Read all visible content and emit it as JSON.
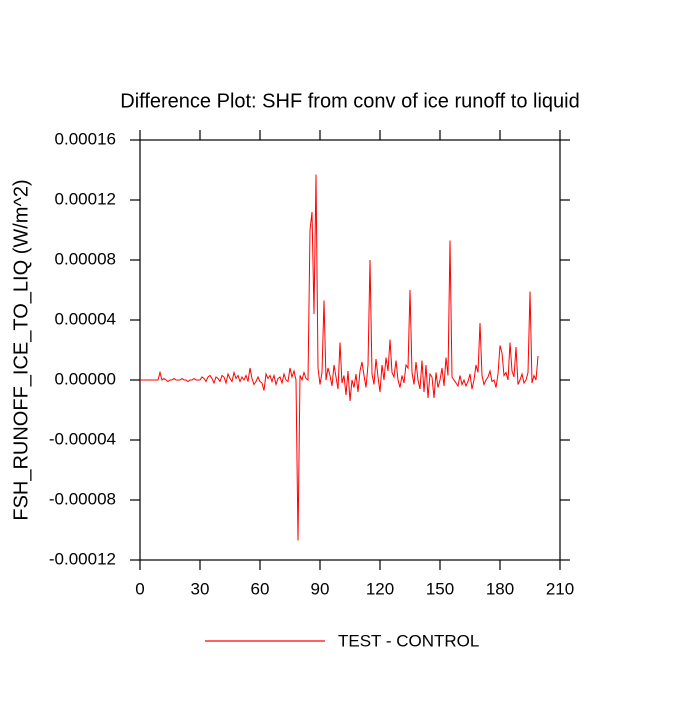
{
  "chart_data": {
    "type": "line",
    "title": "Difference Plot: SHF from conv of ice runoff to liquid",
    "y_label": "FSH_RUNOFF_ICE_TO_LIQ  (W/m^2)",
    "xlim": [
      0,
      210
    ],
    "xticks": [
      0,
      30,
      60,
      90,
      120,
      150,
      180,
      210
    ],
    "ylim": [
      -0.00012,
      0.00016
    ],
    "yticks": [
      0.00016,
      0.00012,
      8e-05,
      4e-05,
      {
        "value": 0,
        "label": "0.00000"
      },
      -4e-05,
      -8e-05,
      -0.00012
    ],
    "x": [
      0,
      1,
      2,
      3,
      4,
      5,
      6,
      7,
      8,
      9,
      10,
      11,
      12,
      13,
      14,
      15,
      16,
      17,
      18,
      19,
      20,
      21,
      22,
      23,
      24,
      25,
      26,
      27,
      28,
      29,
      30,
      31,
      32,
      33,
      34,
      35,
      36,
      37,
      38,
      39,
      40,
      41,
      42,
      43,
      44,
      45,
      46,
      47,
      48,
      49,
      50,
      51,
      52,
      53,
      54,
      55,
      56,
      57,
      58,
      59,
      60,
      61,
      62,
      63,
      64,
      65,
      66,
      67,
      68,
      69,
      70,
      71,
      72,
      73,
      74,
      75,
      76,
      77,
      78,
      79,
      80,
      81,
      82,
      83,
      84,
      85,
      86,
      87,
      88,
      89,
      90,
      91,
      92,
      93,
      94,
      95,
      96,
      97,
      98,
      99,
      100,
      101,
      102,
      103,
      104,
      105,
      106,
      107,
      108,
      109,
      110,
      111,
      112,
      113,
      114,
      115,
      116,
      117,
      118,
      119,
      120,
      121,
      122,
      123,
      124,
      125,
      126,
      127,
      128,
      129,
      130,
      131,
      132,
      133,
      134,
      135,
      136,
      137,
      138,
      139,
      140,
      141,
      142,
      143,
      144,
      145,
      146,
      147,
      148,
      149,
      150,
      151,
      152,
      153,
      154,
      155,
      156,
      157,
      158,
      159,
      160,
      161,
      162,
      163,
      164,
      165,
      166,
      167,
      168,
      169,
      170,
      171,
      172,
      173,
      174,
      175,
      176,
      177,
      178,
      179,
      180,
      181,
      182,
      183,
      184,
      185,
      186,
      187,
      188,
      189,
      190,
      191,
      192,
      193,
      194,
      195,
      196,
      197,
      198,
      199
    ],
    "series": [
      {
        "name": "TEST - CONTROL",
        "color": "#ff0000",
        "values": [
          0,
          0,
          0,
          0,
          0,
          0,
          0,
          0,
          0,
          0,
          5e-06,
          0,
          1e-06,
          0,
          -1e-06,
          0,
          0,
          1e-06,
          0,
          0,
          0,
          1e-06,
          0,
          0,
          -1e-06,
          0,
          0,
          1e-06,
          0,
          0,
          0,
          2e-06,
          1e-06,
          -1e-06,
          2e-06,
          3e-06,
          1e-06,
          -2e-06,
          2e-06,
          1e-06,
          -1e-06,
          3e-06,
          2e-06,
          -2e-06,
          4e-06,
          1e-06,
          -1e-06,
          5e-06,
          1e-06,
          3e-06,
          -1e-06,
          2e-06,
          0,
          3e-06,
          -1e-06,
          8e-06,
          1e-06,
          -3e-06,
          -1e-06,
          2e-06,
          -1e-06,
          -2e-06,
          -7e-06,
          4e-06,
          1e-06,
          3e-06,
          -1e-06,
          3e-06,
          -3e-06,
          1e-06,
          2e-06,
          -2e-06,
          4e-06,
          0,
          -1e-06,
          8e-06,
          2e-06,
          6e-06,
          0,
          -0.000107,
          3e-06,
          0,
          5e-06,
          1e-06,
          0,
          0.0001,
          0.000112,
          4.4e-05,
          0.000137,
          8e-06,
          -3e-06,
          5e-06,
          5.3e-05,
          0,
          8e-06,
          3e-06,
          -4e-06,
          1e-05,
          2e-06,
          -6e-06,
          2.5e-05,
          -2e-06,
          3e-06,
          -1e-05,
          6e-06,
          -1.4e-05,
          0,
          -5e-06,
          4e-06,
          -8e-06,
          6e-06,
          1.2e-05,
          3e-06,
          -5e-06,
          1e-05,
          8e-05,
          4e-06,
          -3e-06,
          1.4e-05,
          2e-06,
          -8e-06,
          1e-05,
          0,
          1.5e-05,
          6e-06,
          2.7e-05,
          5e-06,
          2e-06,
          1.3e-05,
          0,
          -5e-06,
          3e-06,
          -2e-06,
          1e-05,
          8e-06,
          6e-05,
          5e-06,
          -3e-06,
          1.2e-05,
          0,
          -6e-06,
          1.3e-05,
          -8e-06,
          1e-05,
          -1.2e-05,
          4e-06,
          2e-06,
          -1.2e-05,
          5e-06,
          -5e-06,
          0,
          8e-06,
          -4e-06,
          1.5e-05,
          3e-06,
          9.3e-05,
          2e-06,
          0,
          -2e-06,
          -4e-06,
          3e-06,
          -3e-06,
          0,
          -4e-06,
          -1e-06,
          4e-06,
          -6e-06,
          0,
          1e-05,
          5e-06,
          3.8e-05,
          3e-06,
          -3e-06,
          0,
          2e-06,
          6e-06,
          -1e-06,
          0,
          -5e-06,
          4e-06,
          2.3e-05,
          1.8e-05,
          3e-06,
          5e-06,
          0,
          2.5e-05,
          6e-06,
          2e-06,
          2.2e-05,
          -3e-06,
          0,
          4e-06,
          -2e-06,
          0,
          5e-06,
          5.9e-05,
          -2e-06,
          3e-06,
          0,
          1.6e-05
        ]
      }
    ]
  }
}
